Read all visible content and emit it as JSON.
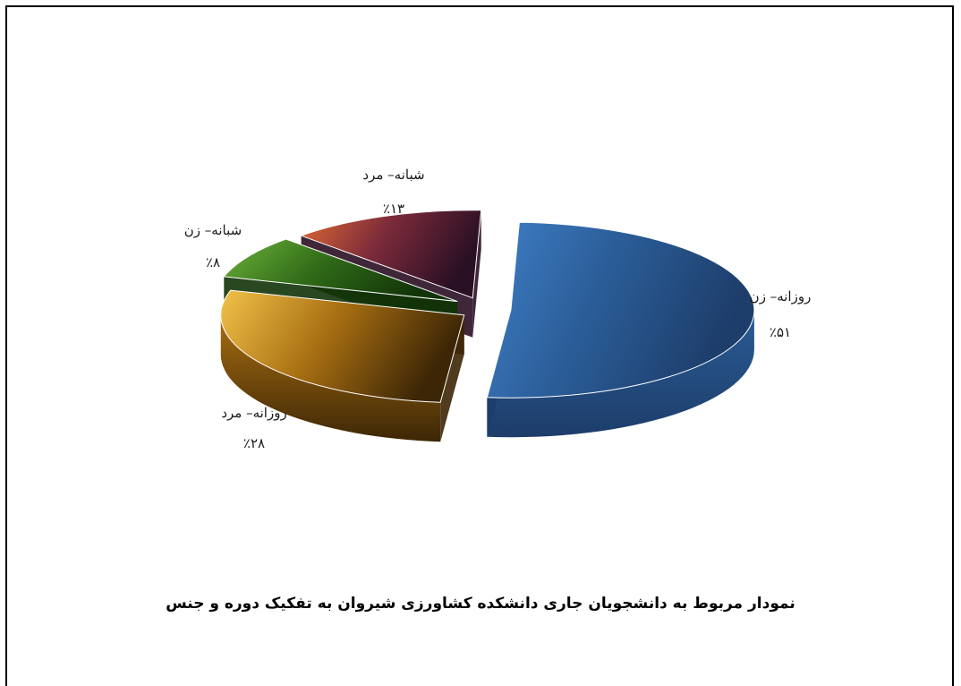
{
  "chart_data": {
    "type": "pie",
    "title": "نمودار مربوط به دانشجویان جاری دانشکده کشاورزی شیروان به تفکیک دوره و جنس",
    "slices": [
      {
        "category": "روزانه– زن",
        "value": 51,
        "value_label": "٪۵۱",
        "theme": "mountain-lake",
        "colors": [
          "#3f7fc7",
          "#2a5c96",
          "#1d3d6a"
        ]
      },
      {
        "category": "روزانه– مرد",
        "value": 28,
        "value_label": "٪۲۸",
        "theme": "golden-sunset",
        "colors": [
          "#f2c24a",
          "#a86f12",
          "#3d2606"
        ]
      },
      {
        "category": "شبانه– زن",
        "value": 8,
        "value_label": "٪۸",
        "theme": "green-grass",
        "colors": [
          "#6fb33a",
          "#2f6a18",
          "#123308"
        ]
      },
      {
        "category": "شبانه– مرد",
        "value": 13,
        "value_label": "٪۱۳",
        "theme": "red-dusk",
        "colors": [
          "#e06a33",
          "#7a2a3a",
          "#2a1024"
        ]
      }
    ],
    "legend": "none",
    "style": "3d-exploded-pie"
  }
}
